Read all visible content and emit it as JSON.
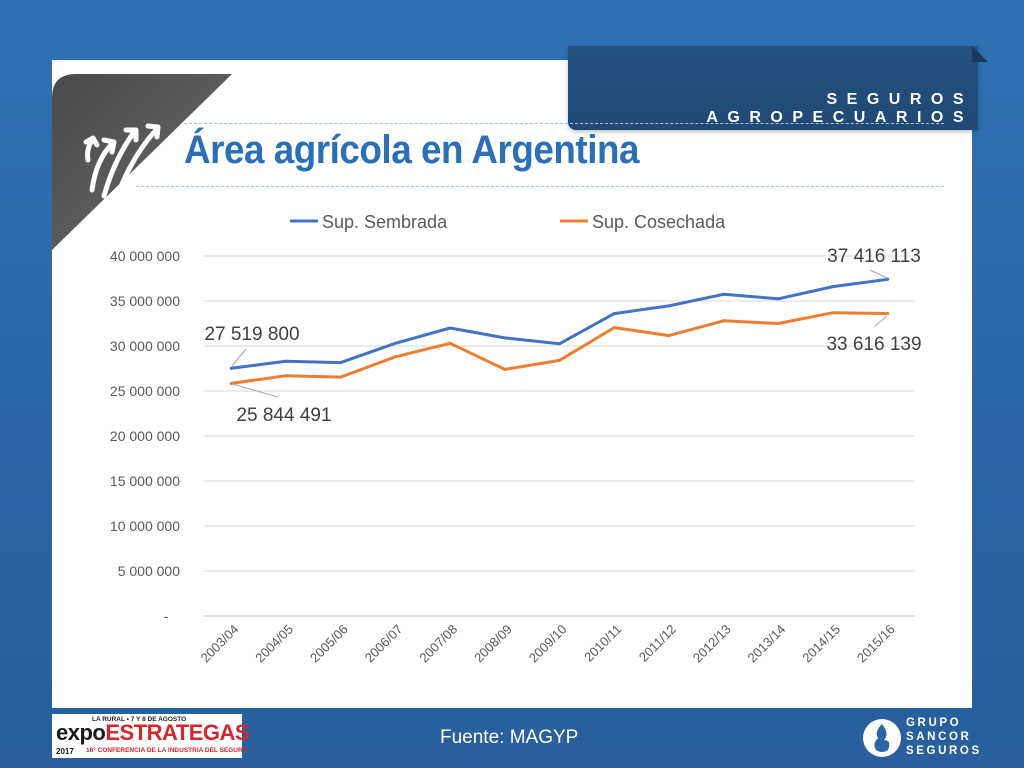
{
  "header": {
    "badge_text": "SEGUROS AGROPECUARIOS",
    "title": "Área agrícola en Argentina",
    "icon": "arrows-up-icon"
  },
  "chart_data": {
    "type": "line",
    "categories": [
      "2003/04",
      "2004/05",
      "2005/06",
      "2006/07",
      "2007/08",
      "2008/09",
      "2009/10",
      "2010/11",
      "2011/12",
      "2012/13",
      "2013/14",
      "2014/15",
      "2015/16"
    ],
    "series": [
      {
        "name": "Sup. Sembrada",
        "color": "#4472c4",
        "values": [
          27519800,
          28300000,
          28150000,
          30300000,
          32000000,
          30900000,
          30250000,
          33600000,
          34450000,
          35750000,
          35250000,
          36600000,
          37416113
        ]
      },
      {
        "name": "Sup. Cosechada",
        "color": "#ed7d31",
        "values": [
          25844491,
          26700000,
          26550000,
          28800000,
          30300000,
          27400000,
          28400000,
          32050000,
          31150000,
          32800000,
          32500000,
          33700000,
          33616139
        ]
      }
    ],
    "ylim": [
      0,
      40000000
    ],
    "yticks": [
      0,
      5000000,
      10000000,
      15000000,
      20000000,
      25000000,
      30000000,
      35000000,
      40000000
    ],
    "ytick_labels": [
      "-",
      "5 000 000",
      "10 000 000",
      "15 000 000",
      "20 000 000",
      "25 000 000",
      "30 000 000",
      "35 000 000",
      "40 000 000"
    ],
    "grid": true,
    "legend": "top",
    "annotations": [
      {
        "text": "27 519 800",
        "series": 0,
        "index": 0
      },
      {
        "text": "25 844 491",
        "series": 1,
        "index": 0
      },
      {
        "text": "37 416 113",
        "series": 0,
        "index": 12
      },
      {
        "text": "33 616 139",
        "series": 1,
        "index": 12
      }
    ]
  },
  "footer": {
    "source": "Fuente: MAGYP",
    "expo": {
      "top": "LA RURAL • 7 Y 8 DE AGOSTO",
      "main_a": "expo",
      "main_b": "ESTRATEGAS",
      "year": "2017",
      "sub": "16° CONFERENCIA DE LA INDUSTRIA DEL SEGURO"
    },
    "sancor": {
      "line1": "GRUPO",
      "line2": "SANCOR",
      "line3": "SEGUROS"
    }
  }
}
